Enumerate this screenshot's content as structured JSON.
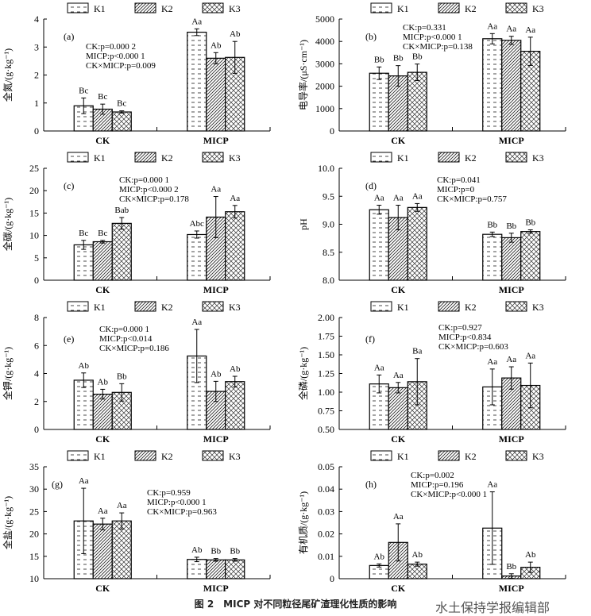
{
  "legend": [
    "K1",
    "K2",
    "K3"
  ],
  "caption": "图 2　MICP 对不同粒径尾矿渣理化性质的影响",
  "watermark": "水土保持学报编辑部",
  "chart_data": [
    {
      "type": "bar",
      "panel": "(a)",
      "ylabel": "全氮/(g·kg⁻¹)",
      "ylim": [
        0,
        4
      ],
      "yticks": [
        "0",
        "1",
        "2",
        "3",
        "4"
      ],
      "categories": [
        "CK",
        "MICP"
      ],
      "series": [
        {
          "name": "K1",
          "values": [
            0.9,
            3.53
          ],
          "errors": [
            0.28,
            0.12
          ],
          "letters": [
            "Bc",
            "Aa"
          ]
        },
        {
          "name": "K2",
          "values": [
            0.78,
            2.6
          ],
          "errors": [
            0.18,
            0.2
          ],
          "letters": [
            "Bc",
            "Ab"
          ]
        },
        {
          "name": "K3",
          "values": [
            0.68,
            2.63
          ],
          "errors": [
            0.04,
            0.57
          ],
          "letters": [
            "Bc",
            "Ab"
          ]
        }
      ],
      "stats": [
        "CK:p=0.000 2",
        "MICP:p<0.000 1",
        "CK×MICP:p=0.009"
      ]
    },
    {
      "type": "bar",
      "panel": "(b)",
      "ylabel": "电导率/(μS·cm⁻¹)",
      "ylim": [
        0,
        5000
      ],
      "yticks": [
        "0",
        "1000",
        "2000",
        "3000",
        "4000",
        "5000"
      ],
      "categories": [
        "CK",
        "MICP"
      ],
      "series": [
        {
          "name": "K1",
          "values": [
            2580,
            4120
          ],
          "errors": [
            280,
            230
          ],
          "letters": [
            "Bb",
            "Aa"
          ]
        },
        {
          "name": "K2",
          "values": [
            2460,
            4050
          ],
          "errors": [
            460,
            180
          ],
          "letters": [
            "Bb",
            "Aa"
          ]
        },
        {
          "name": "K3",
          "values": [
            2620,
            3560
          ],
          "errors": [
            370,
            630
          ],
          "letters": [
            "Bb",
            "Aa"
          ]
        }
      ],
      "stats": [
        "CK:p=0.331",
        "MICP:p<0.000 1",
        "CK×MICP:p=0.138"
      ]
    },
    {
      "type": "bar",
      "panel": "(c)",
      "ylabel": "全碳/(g·kg⁻¹)",
      "ylim": [
        0,
        25
      ],
      "yticks": [
        "0",
        "5",
        "10",
        "15",
        "20",
        "25"
      ],
      "categories": [
        "CK",
        "MICP"
      ],
      "series": [
        {
          "name": "K1",
          "values": [
            7.9,
            10.2
          ],
          "errors": [
            1.0,
            0.8
          ],
          "letters": [
            "Bc",
            "Abc"
          ]
        },
        {
          "name": "K2",
          "values": [
            8.6,
            14.1
          ],
          "errors": [
            0.3,
            4.6
          ],
          "letters": [
            "Bc",
            "Aa"
          ]
        },
        {
          "name": "K3",
          "values": [
            12.7,
            15.3
          ],
          "errors": [
            1.3,
            1.4
          ],
          "letters": [
            "Bab",
            "Aa"
          ]
        }
      ],
      "stats": [
        "CK:p=0.000 1",
        "MICP:p<0.000 2",
        "CK×MICP:p=0.178"
      ]
    },
    {
      "type": "bar",
      "panel": "(d)",
      "ylabel": "pH",
      "ylim": [
        8,
        10
      ],
      "yticks": [
        "8.0",
        "8.5",
        "9.0",
        "9.5",
        "10.0"
      ],
      "categories": [
        "CK",
        "MICP"
      ],
      "series": [
        {
          "name": "K1",
          "values": [
            9.26,
            8.82
          ],
          "errors": [
            0.08,
            0.04
          ],
          "letters": [
            "Aa",
            "Bb"
          ]
        },
        {
          "name": "K2",
          "values": [
            9.12,
            8.76
          ],
          "errors": [
            0.22,
            0.08
          ],
          "letters": [
            "Aa",
            "Bb"
          ]
        },
        {
          "name": "K3",
          "values": [
            9.3,
            8.87
          ],
          "errors": [
            0.07,
            0.03
          ],
          "letters": [
            "Aa",
            "Bb"
          ]
        }
      ],
      "stats": [
        "CK:p=0.041",
        "MICP:p=0",
        "CK×MICP:p=0.757"
      ]
    },
    {
      "type": "bar",
      "panel": "(e)",
      "ylabel": "全钾/(g·kg⁻¹)",
      "ylim": [
        0,
        8
      ],
      "yticks": [
        "0",
        "2",
        "4",
        "6",
        "8"
      ],
      "categories": [
        "CK",
        "MICP"
      ],
      "series": [
        {
          "name": "K1",
          "values": [
            3.52,
            5.25
          ],
          "errors": [
            0.52,
            1.9
          ],
          "letters": [
            "Ab",
            "Aa"
          ]
        },
        {
          "name": "K2",
          "values": [
            2.52,
            2.72
          ],
          "errors": [
            0.35,
            0.72
          ],
          "letters": [
            "Ab",
            "Ab"
          ]
        },
        {
          "name": "K3",
          "values": [
            2.65,
            3.42
          ],
          "errors": [
            0.62,
            0.38
          ],
          "letters": [
            "Bb",
            "Ab"
          ]
        }
      ],
      "stats": [
        "CK:p=0.000 1",
        "MICP:p<0.014",
        "CK×MICP:p=0.186"
      ]
    },
    {
      "type": "bar",
      "panel": "(f)",
      "ylabel": "全磷/(g·kg⁻¹)",
      "ylim": [
        0.5,
        2.0
      ],
      "yticks": [
        "0.50",
        "0.75",
        "1.00",
        "1.25",
        "1.50",
        "1.75",
        "2.00"
      ],
      "categories": [
        "CK",
        "MICP"
      ],
      "series": [
        {
          "name": "K1",
          "values": [
            1.11,
            1.07
          ],
          "errors": [
            0.12,
            0.24
          ],
          "letters": [
            "Aa",
            "Aa"
          ]
        },
        {
          "name": "K2",
          "values": [
            1.06,
            1.19
          ],
          "errors": [
            0.07,
            0.15
          ],
          "letters": [
            "Aa",
            "Aa"
          ]
        },
        {
          "name": "K3",
          "values": [
            1.14,
            1.09
          ],
          "errors": [
            0.31,
            0.3
          ],
          "letters": [
            "Ba",
            "Aa"
          ]
        }
      ],
      "stats": [
        "CK:p=0.927",
        "MICP:p<0.834",
        "CK×MICP:p=0.603"
      ]
    },
    {
      "type": "bar",
      "panel": "(g)",
      "ylabel": "全盐/(g·kg⁻¹)",
      "ylim": [
        10,
        35
      ],
      "yticks": [
        "10",
        "15",
        "20",
        "25",
        "30",
        "35"
      ],
      "categories": [
        "CK",
        "MICP"
      ],
      "series": [
        {
          "name": "K1",
          "values": [
            22.9,
            14.3
          ],
          "errors": [
            7.3,
            0.5
          ],
          "letters": [
            "Aa",
            "Ab"
          ]
        },
        {
          "name": "K2",
          "values": [
            22.2,
            14.2
          ],
          "errors": [
            1.3,
            0.3
          ],
          "letters": [
            "Aa",
            "Bb"
          ]
        },
        {
          "name": "K3",
          "values": [
            22.9,
            14.2
          ],
          "errors": [
            1.8,
            0.3
          ],
          "letters": [
            "Aa",
            "Bb"
          ]
        }
      ],
      "stats": [
        "CK:p=0.959",
        "MICP:p<0.000 1",
        "CK×MICP:p=0.963"
      ]
    },
    {
      "type": "bar",
      "panel": "(h)",
      "ylabel": "有机质/(g·kg⁻¹)",
      "ylim": [
        0,
        0.05
      ],
      "yticks": [
        "0",
        "0.01",
        "0.02",
        "0.03",
        "0.04",
        "0.05"
      ],
      "categories": [
        "CK",
        "MICP"
      ],
      "series": [
        {
          "name": "K1",
          "values": [
            0.0059,
            0.0226
          ],
          "errors": [
            0.0007,
            0.0162
          ],
          "letters": [
            "Ab",
            "Aa"
          ]
        },
        {
          "name": "K2",
          "values": [
            0.0162,
            0.0012
          ],
          "errors": [
            0.0083,
            0.001
          ],
          "letters": [
            "Aa",
            "Bb"
          ]
        },
        {
          "name": "K3",
          "values": [
            0.0065,
            0.0051
          ],
          "errors": [
            0.0009,
            0.0023
          ],
          "letters": [
            "Ab",
            "Ab"
          ]
        }
      ],
      "stats": [
        "CK:p=0.002",
        "MICP:p=0.196",
        "CK×MICP:p<0.000 1"
      ]
    }
  ]
}
